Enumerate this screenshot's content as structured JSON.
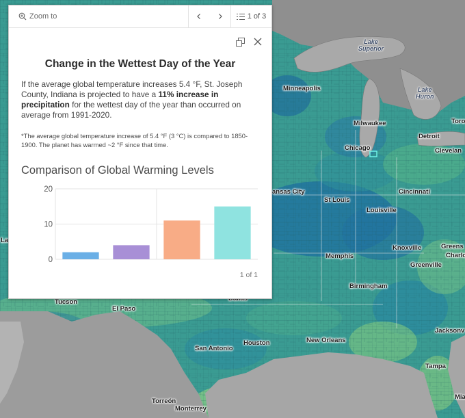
{
  "popup": {
    "zoom_to_label": "Zoom to",
    "pager_label": "1 of 3",
    "title": "Change in the Wettest Day of the Year",
    "body_pre": "If the average global temperature increases 5.4 °F, St. Joseph County, Indiana is projected to have a ",
    "body_bold": "11% increase in precipitation",
    "body_post": " for the wettest day of the year than occurred on average from 1991-2020.",
    "note": "*The average global temperature increase of 5.4 °F (3 °C) is compared to 1850-1900. The planet has warmed ~2 °F since that time.",
    "chart_title": "Comparison of Global Warming Levels",
    "chart_pager": "1 of 1"
  },
  "chart_data": {
    "type": "bar",
    "values": [
      2,
      4,
      11,
      15
    ],
    "colors": [
      "#6aafe6",
      "#a88fd6",
      "#f8ac86",
      "#8fe3e0"
    ],
    "ylim": [
      0,
      20
    ],
    "yticks": [
      0,
      10,
      20
    ],
    "grid": true
  },
  "map": {
    "cities": [
      {
        "name": "Minneapolis"
      },
      {
        "name": "Milwaukee"
      },
      {
        "name": "Detroit"
      },
      {
        "name": "Chicago"
      },
      {
        "name": "Toro"
      },
      {
        "name": "Clevelan"
      },
      {
        "name": "ansas City"
      },
      {
        "name": "St Louis"
      },
      {
        "name": "Cincinnati"
      },
      {
        "name": "Louisville"
      },
      {
        "name": "Knoxville"
      },
      {
        "name": "Greens"
      },
      {
        "name": "Charlo"
      },
      {
        "name": "Memphis"
      },
      {
        "name": "Greenville"
      },
      {
        "name": "Birmingham"
      },
      {
        "name": "Dallas"
      },
      {
        "name": "Tucson"
      },
      {
        "name": "El Paso"
      },
      {
        "name": "Houston"
      },
      {
        "name": "New Orleans"
      },
      {
        "name": "Jacksonv"
      },
      {
        "name": "San Antonio"
      },
      {
        "name": "Tampa"
      },
      {
        "name": "Mia"
      },
      {
        "name": "Torreón"
      },
      {
        "name": "Monterrey"
      },
      {
        "name": "La"
      }
    ],
    "lakes": [
      {
        "line1": "Lake",
        "line2": "Superior"
      },
      {
        "line1": "Lake",
        "line2": "Huron"
      }
    ]
  }
}
